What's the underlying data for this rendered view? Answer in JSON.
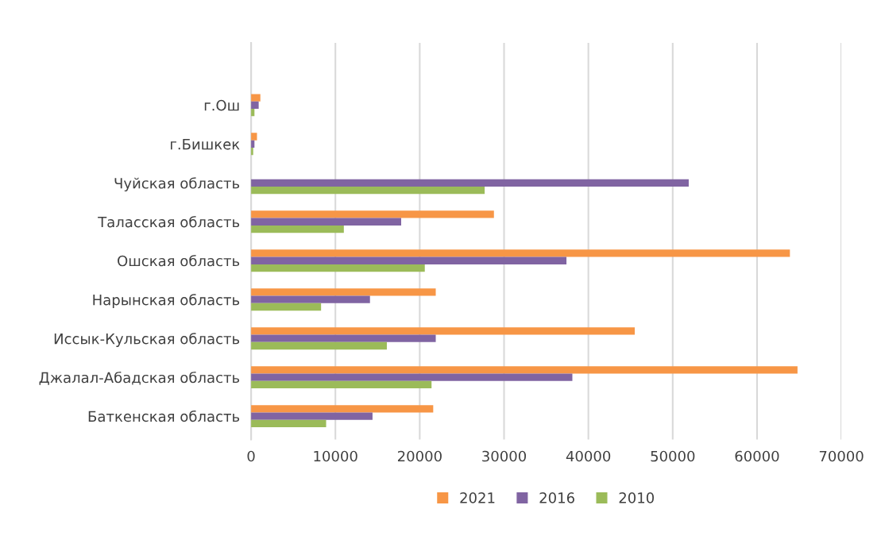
{
  "chart_data": {
    "type": "bar",
    "orientation": "horizontal",
    "categories": [
      "г.Ош",
      "г.Бишкек",
      "Чуйская область",
      "Таласская область",
      "Ошская область",
      "Нарынская область",
      "Иссык-Кульская область",
      "Джалал-Абадская область",
      "Баткенская область"
    ],
    "series": [
      {
        "name": "2021",
        "color": "#f79646",
        "values": [
          1100,
          700,
          null,
          28800,
          63900,
          21900,
          45500,
          64800,
          21600
        ]
      },
      {
        "name": "2016",
        "color": "#8064a2",
        "values": [
          900,
          400,
          51900,
          17800,
          37400,
          14100,
          21900,
          38100,
          14400
        ]
      },
      {
        "name": "2010",
        "color": "#9bbb59",
        "values": [
          400,
          250,
          27700,
          11000,
          20600,
          8300,
          16100,
          21400,
          8900
        ]
      }
    ],
    "xlim": [
      0,
      70000
    ],
    "xticks": [
      0,
      10000,
      20000,
      30000,
      40000,
      50000,
      60000,
      70000
    ],
    "grid": "x",
    "legend": "bottom"
  }
}
